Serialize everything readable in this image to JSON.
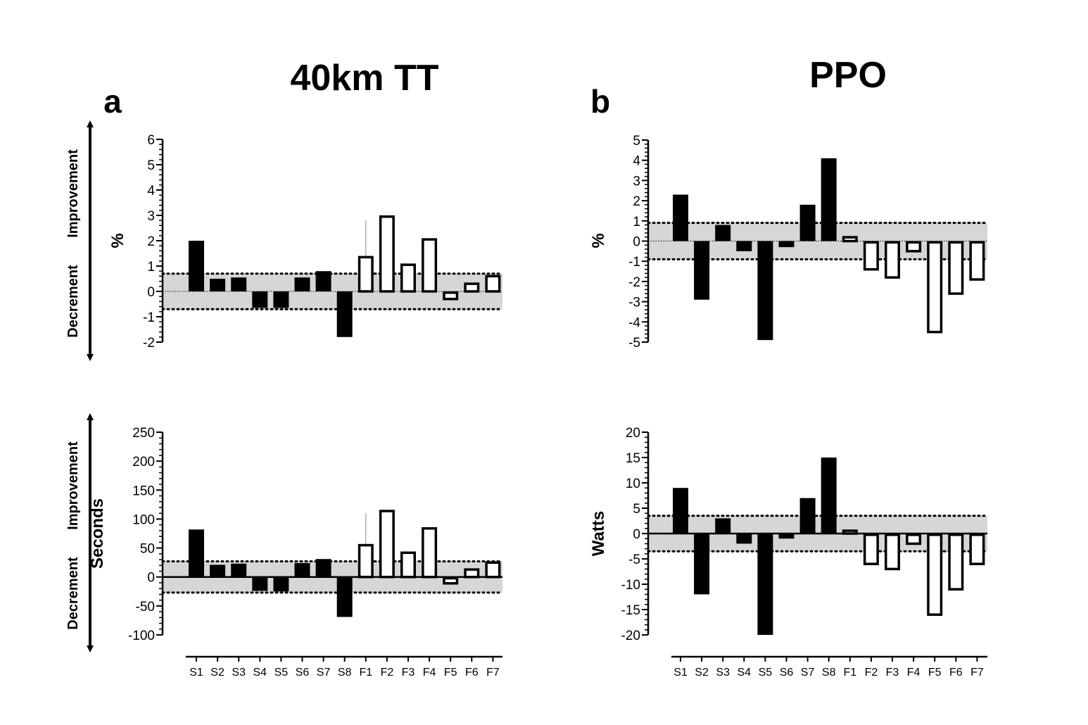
{
  "figure": {
    "panel_a_title": "40km TT",
    "panel_b_title": "PPO",
    "panel_a_letter": "a",
    "panel_b_letter": "b",
    "improvement_label": "Improvement",
    "decrement_label": "Decrement"
  },
  "colors": {
    "supplement_fill": "#000000",
    "placebo_fill": "#ffffff",
    "band_fill": "#d6d6d6",
    "ink": "#000000"
  },
  "chart_data": [
    {
      "id": "tt-percent",
      "type": "bar",
      "panel": "a",
      "title": "40km TT",
      "ylabel": "%",
      "xlabel": "",
      "categories": [
        "S1",
        "S2",
        "S3",
        "S4",
        "S5",
        "S6",
        "S7",
        "S8",
        "F1",
        "F2",
        "F3",
        "F4",
        "F5",
        "F6",
        "F7"
      ],
      "values": [
        2.0,
        0.5,
        0.55,
        -0.65,
        -0.65,
        0.55,
        0.8,
        -1.8,
        1.4,
        3.0,
        1.1,
        2.1,
        -0.3,
        0.35,
        0.65
      ],
      "filled": [
        true,
        true,
        true,
        true,
        true,
        true,
        true,
        true,
        false,
        false,
        false,
        false,
        false,
        false,
        false
      ],
      "ylim": [
        -2,
        6
      ],
      "yticks": [
        6,
        5,
        4,
        3,
        2,
        1,
        0,
        -1,
        -2
      ],
      "band": [
        -0.7,
        0.7
      ],
      "error_bars": [
        {
          "category": "F1",
          "value": 2.8
        }
      ],
      "show_x_labels": false
    },
    {
      "id": "tt-seconds",
      "type": "bar",
      "panel": "a",
      "title": "",
      "ylabel": "Seconds",
      "xlabel": "",
      "categories": [
        "S1",
        "S2",
        "S3",
        "S4",
        "S5",
        "S6",
        "S7",
        "S8",
        "F1",
        "F2",
        "F3",
        "F4",
        "F5",
        "F6",
        "F7"
      ],
      "values": [
        82,
        21,
        23,
        -24,
        -25,
        24,
        31,
        -69,
        57,
        116,
        44,
        86,
        -11,
        15,
        27
      ],
      "filled": [
        true,
        true,
        true,
        true,
        true,
        true,
        true,
        true,
        false,
        false,
        false,
        false,
        false,
        false,
        false
      ],
      "ylim": [
        -100,
        250
      ],
      "yticks": [
        250,
        200,
        150,
        100,
        50,
        0,
        -50,
        -100
      ],
      "band": [
        -27,
        27
      ],
      "error_bars": [
        {
          "category": "F1",
          "value": 110
        }
      ],
      "show_x_labels": true
    },
    {
      "id": "ppo-percent",
      "type": "bar",
      "panel": "b",
      "title": "PPO",
      "ylabel": "%",
      "xlabel": "",
      "categories": [
        "S1",
        "S2",
        "S3",
        "S4",
        "S5",
        "S6",
        "S7",
        "S8",
        "F1",
        "F2",
        "F3",
        "F4",
        "F5",
        "F6",
        "F7"
      ],
      "values": [
        2.3,
        -2.9,
        0.8,
        -0.5,
        -4.9,
        -0.3,
        1.8,
        4.1,
        0.25,
        -1.4,
        -1.8,
        -0.5,
        -4.5,
        -2.6,
        -1.9
      ],
      "filled": [
        true,
        true,
        true,
        true,
        true,
        true,
        true,
        true,
        false,
        false,
        false,
        false,
        false,
        false,
        false
      ],
      "ylim": [
        -5,
        5
      ],
      "yticks": [
        5,
        4,
        3,
        2,
        1,
        0,
        -1,
        -2,
        -3,
        -4,
        -5
      ],
      "band": [
        -0.9,
        0.9
      ],
      "error_bars": [],
      "show_x_labels": false
    },
    {
      "id": "ppo-watts",
      "type": "bar",
      "panel": "b",
      "title": "",
      "ylabel": "Watts",
      "xlabel": "",
      "categories": [
        "S1",
        "S2",
        "S3",
        "S4",
        "S5",
        "S6",
        "S7",
        "S8",
        "F1",
        "F2",
        "F3",
        "F4",
        "F5",
        "F6",
        "F7"
      ],
      "values": [
        9,
        -12,
        3,
        -2,
        -20,
        -1,
        7,
        15,
        0.8,
        -6,
        -7,
        -2,
        -16,
        -11,
        -6
      ],
      "filled": [
        true,
        true,
        true,
        true,
        true,
        true,
        true,
        true,
        false,
        false,
        false,
        false,
        false,
        false,
        false
      ],
      "ylim": [
        -20,
        20
      ],
      "yticks": [
        20,
        15,
        10,
        5,
        0,
        -5,
        -10,
        -15,
        -20
      ],
      "band": [
        -3.5,
        3.5
      ],
      "error_bars": [],
      "show_x_labels": true
    }
  ]
}
